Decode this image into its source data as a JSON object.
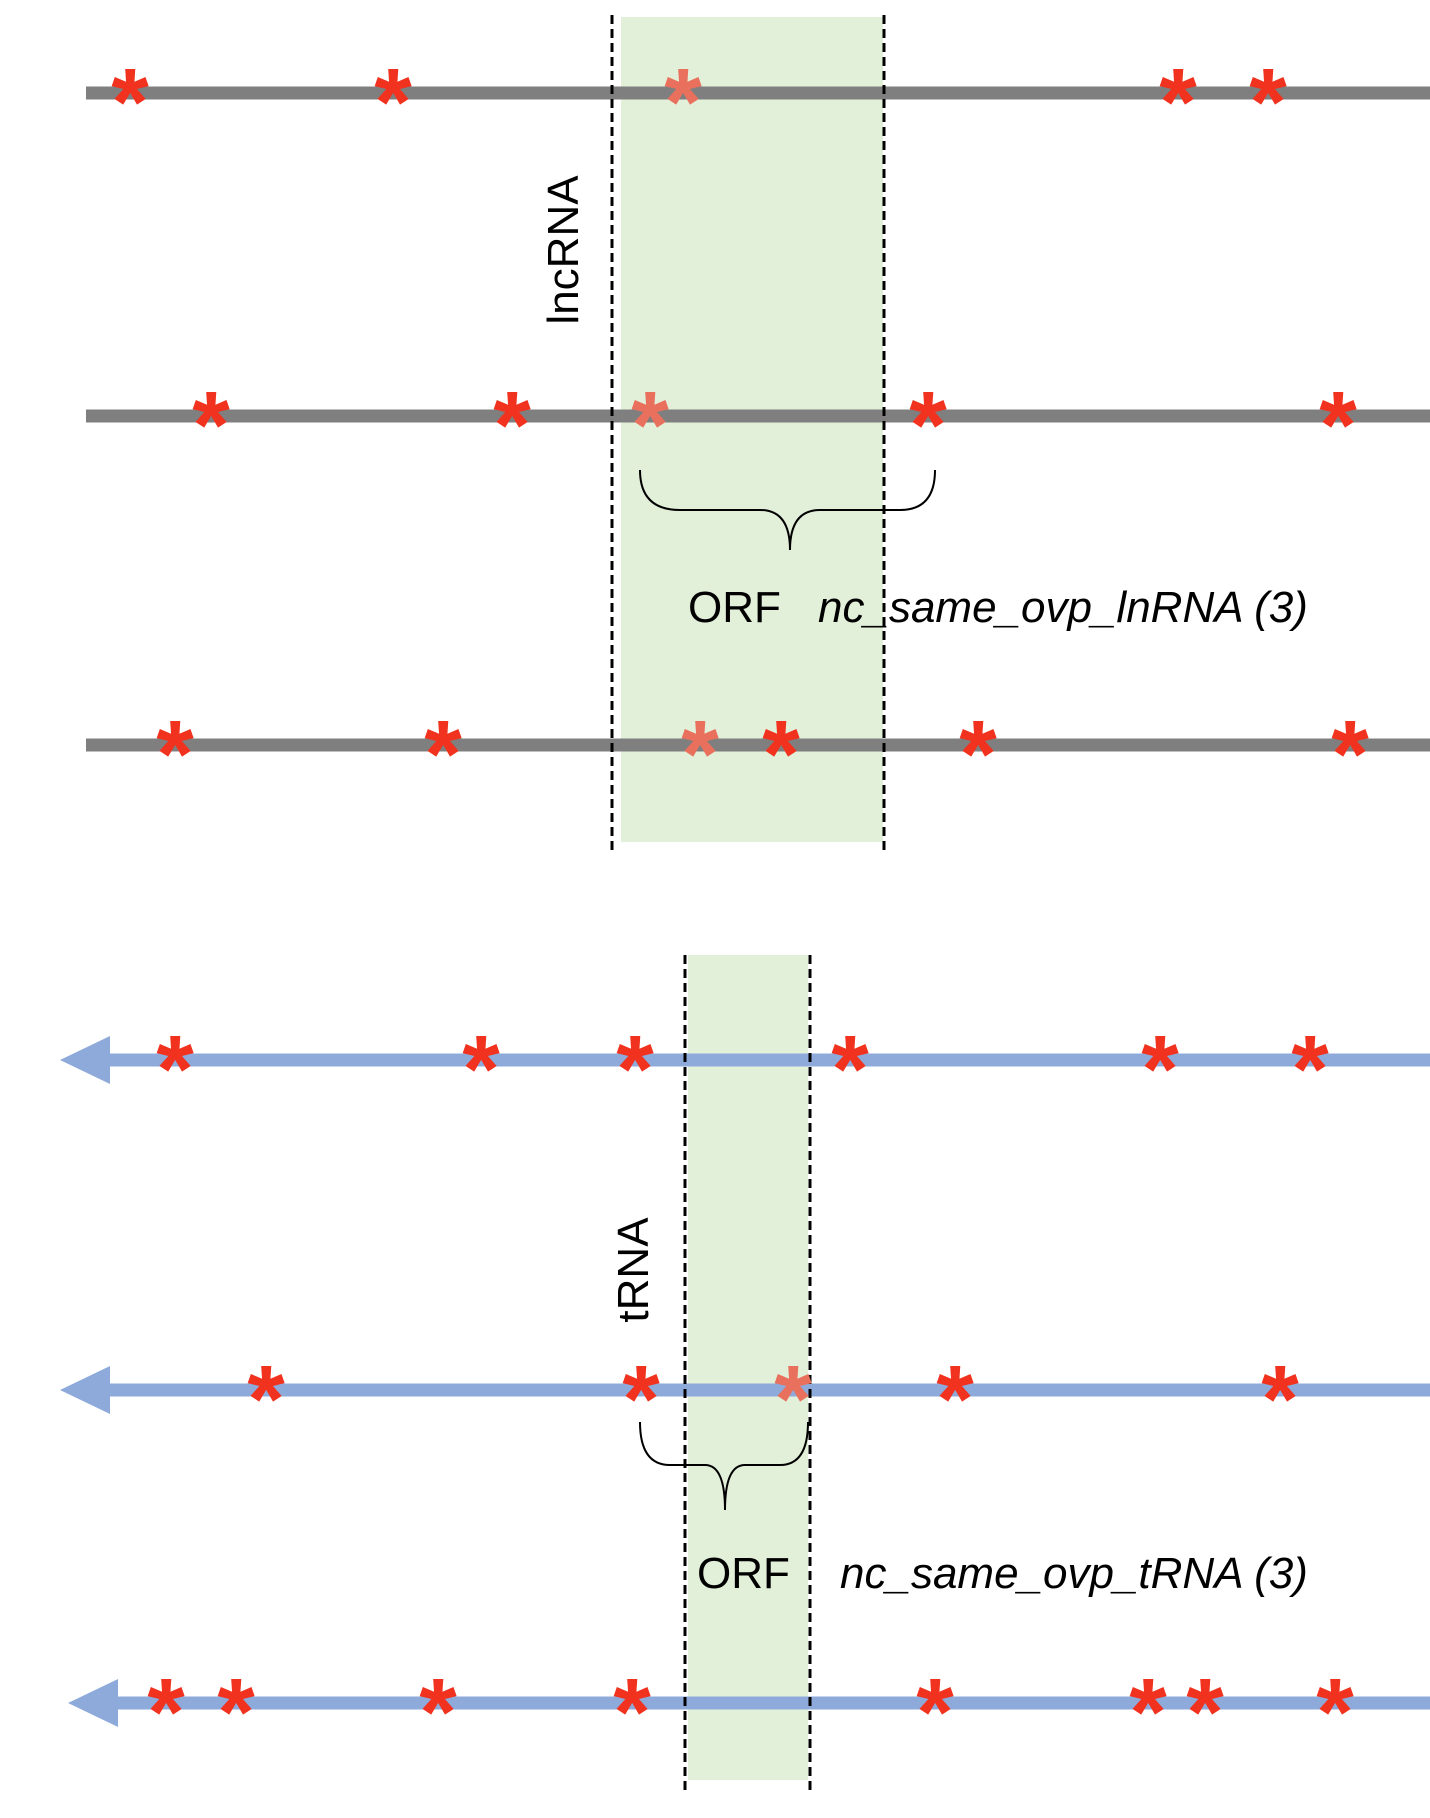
{
  "colors": {
    "lncrna_track": "#7f7f7f",
    "trna_track": "#8eaadb",
    "orf_region": "#e2efd9",
    "stop_codon": "#f0321e",
    "stop_codon_in_orf": "#e8705c",
    "boundary_line": "#000000"
  },
  "glyphs": {
    "stop_codon": "*"
  },
  "panels": [
    {
      "id": "lncrna",
      "vertical_label": "lncRNA",
      "orf_label": "ORF",
      "category_label": "nc_same_ovp_lnRNA (3)",
      "track_icon": "none",
      "track_count": 3
    },
    {
      "id": "trna",
      "vertical_label": "tRNA",
      "orf_label": "ORF",
      "category_label": "nc_same_ovp_tRNA (3)",
      "track_icon": "left-arrow-icon",
      "track_count": 3
    }
  ]
}
